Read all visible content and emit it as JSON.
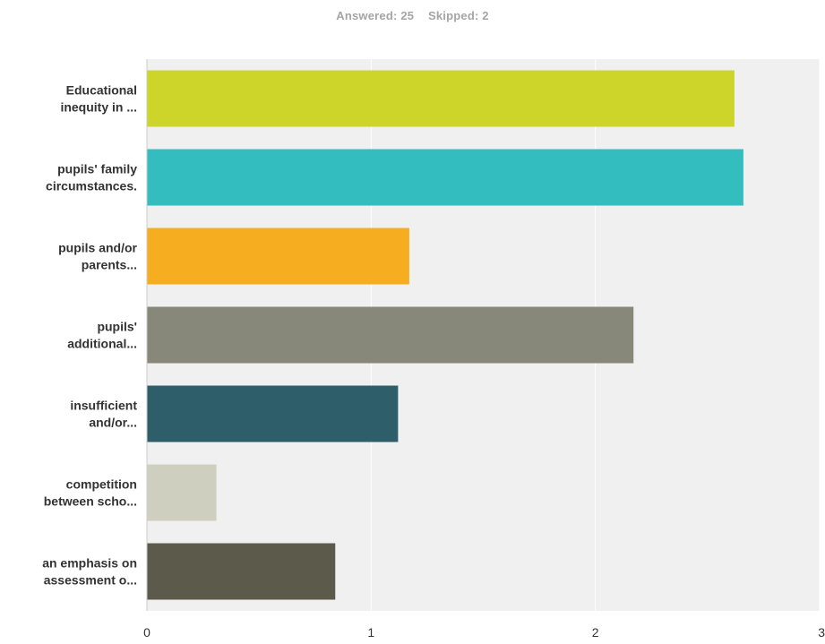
{
  "summary": {
    "answered": "Answered: 25",
    "skipped": "Skipped: 2"
  },
  "chart_data": {
    "type": "bar",
    "orientation": "horizontal",
    "categories": [
      [
        "Educational",
        "inequity in ..."
      ],
      [
        "pupils' family",
        "circumstances."
      ],
      [
        "pupils and/or",
        "parents..."
      ],
      [
        "pupils'",
        "additional..."
      ],
      [
        "insufficient",
        "and/or..."
      ],
      [
        "competition",
        "between scho..."
      ],
      [
        "an emphasis on",
        "assessment o..."
      ]
    ],
    "values": [
      2.62,
      2.66,
      1.17,
      2.17,
      1.12,
      0.31,
      0.84
    ],
    "colors": [
      "#cdd42a",
      "#33bdbf",
      "#f6ae20",
      "#88887a",
      "#2e5e6a",
      "#cfcfc0",
      "#5c5b4b"
    ],
    "xlim": [
      0,
      3
    ],
    "xticks": [
      "0",
      "1",
      "2",
      "3"
    ],
    "grid": true,
    "plot_background": "#f0f0f0"
  }
}
